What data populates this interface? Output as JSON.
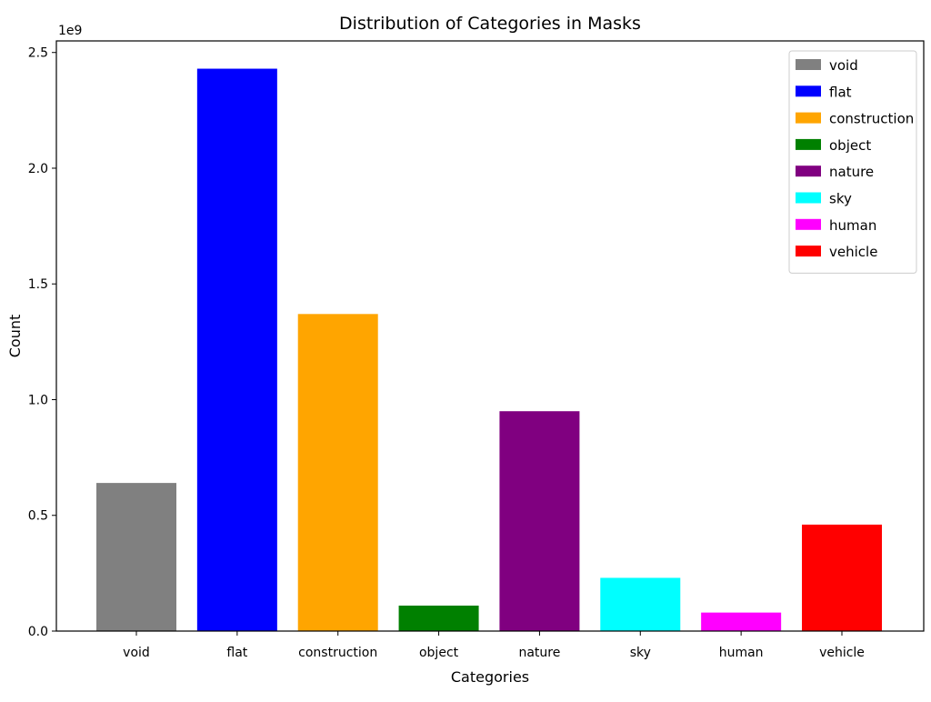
{
  "chart_data": {
    "type": "bar",
    "title": "Distribution of Categories in Masks",
    "xlabel": "Categories",
    "ylabel": "Count",
    "y_offset_label": "1e9",
    "categories": [
      "void",
      "flat",
      "construction",
      "object",
      "nature",
      "sky",
      "human",
      "vehicle"
    ],
    "values": [
      0.64,
      2.43,
      1.37,
      0.11,
      0.95,
      0.23,
      0.08,
      0.46
    ],
    "value_multiplier": 1000000000,
    "colors": [
      "#808080",
      "#0000ff",
      "#ffa500",
      "#008000",
      "#800080",
      "#00ffff",
      "#ff00ff",
      "#ff0000"
    ],
    "ylim": [
      0,
      2.55
    ],
    "y_ticks": [
      0.0,
      0.5,
      1.0,
      1.5,
      2.0,
      2.5
    ],
    "y_tick_labels": [
      "0.0",
      "0.5",
      "1.0",
      "1.5",
      "2.0",
      "2.5"
    ],
    "grid": false,
    "legend": {
      "placement": "top-right",
      "entries": [
        {
          "label": "void",
          "color": "#808080"
        },
        {
          "label": "flat",
          "color": "#0000ff"
        },
        {
          "label": "construction",
          "color": "#ffa500"
        },
        {
          "label": "object",
          "color": "#008000"
        },
        {
          "label": "nature",
          "color": "#800080"
        },
        {
          "label": "sky",
          "color": "#00ffff"
        },
        {
          "label": "human",
          "color": "#ff00ff"
        },
        {
          "label": "vehicle",
          "color": "#ff0000"
        }
      ]
    }
  }
}
